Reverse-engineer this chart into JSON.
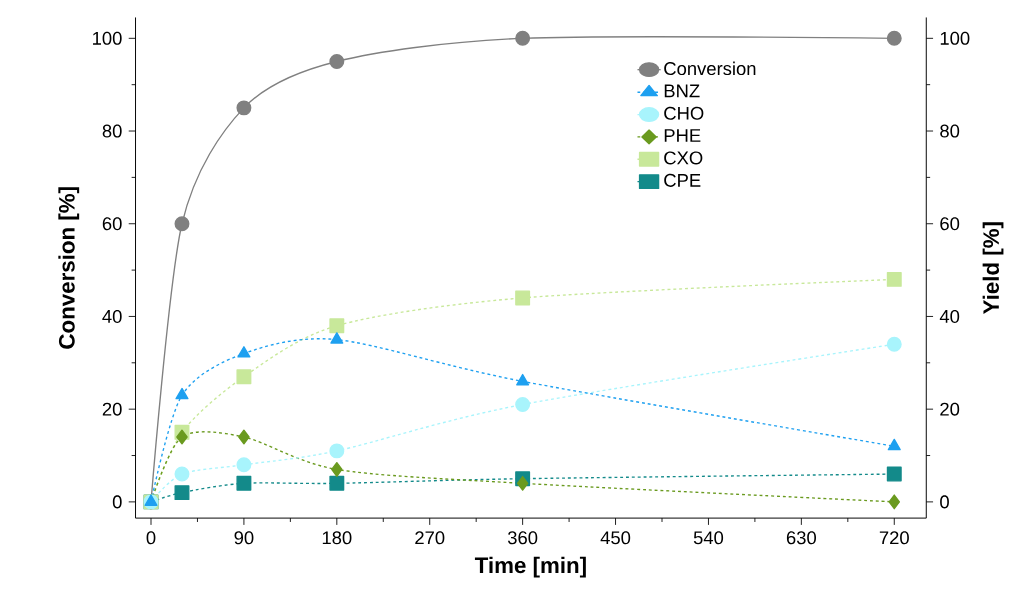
{
  "chart_data": {
    "type": "line",
    "xlabel": "Time [min]",
    "ylabel": "Conversion [%]",
    "y2label": "Yield [%]",
    "x": [
      0,
      30,
      90,
      180,
      360,
      720
    ],
    "xlim": [
      -15,
      751
    ],
    "xticks": [
      0,
      90,
      180,
      270,
      360,
      450,
      540,
      630,
      720
    ],
    "ylim": [
      -3.5,
      104.5
    ],
    "yticks": [
      0,
      20,
      40,
      60,
      80,
      100
    ],
    "y2lim": [
      -3.5,
      104.5
    ],
    "y2ticks": [
      0,
      20,
      40,
      60,
      80,
      100
    ],
    "legend": "top right",
    "grid": false,
    "series": [
      {
        "name": "Conversion",
        "color": "#808080",
        "marker": "circle",
        "line_style": "solid",
        "values": [
          0,
          60,
          85,
          95,
          100,
          100
        ]
      },
      {
        "name": "BNZ",
        "color": "#1ea0f0",
        "marker": "triangle",
        "line_style": "dashed",
        "axis": "y2",
        "values": [
          0,
          23,
          32,
          35,
          26,
          12
        ]
      },
      {
        "name": "CHO",
        "color": "#a8f4fc",
        "marker": "circle",
        "line_style": "dashed",
        "axis": "y2",
        "values": [
          0,
          6,
          8,
          11,
          21,
          34
        ]
      },
      {
        "name": "PHE",
        "color": "#6a9a1f",
        "marker": "diamond",
        "line_style": "dashed",
        "axis": "y2",
        "values": [
          0,
          14,
          14,
          7,
          4,
          0
        ]
      },
      {
        "name": "CXO",
        "color": "#c8e89a",
        "marker": "square",
        "line_style": "dashed",
        "axis": "y2",
        "values": [
          0,
          15,
          27,
          38,
          44,
          48
        ]
      },
      {
        "name": "CPE",
        "color": "#138a8a",
        "marker": "square",
        "line_style": "dashed",
        "axis": "y2",
        "values": [
          0,
          2,
          4,
          4,
          5,
          6
        ]
      }
    ]
  }
}
